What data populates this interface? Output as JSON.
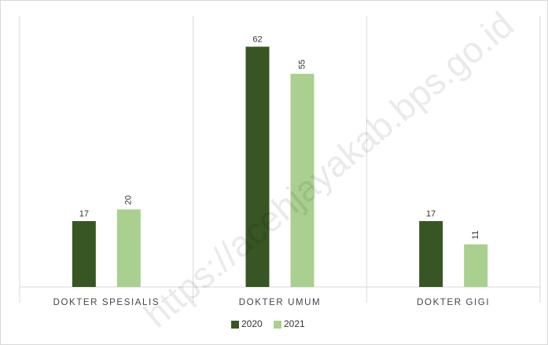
{
  "chart_data": {
    "type": "bar",
    "title": "",
    "xlabel": "",
    "ylabel": "",
    "categories": [
      "DOKTER SPESIALIS",
      "DOKTER UMUM",
      "DOKTER GIGI"
    ],
    "series": [
      {
        "name": "2020",
        "color": "#375623",
        "values": [
          17,
          62,
          17
        ]
      },
      {
        "name": "2021",
        "color": "#A9D08E",
        "values": [
          20,
          55,
          11
        ]
      }
    ],
    "ylim": [
      0,
      70
    ],
    "grid": false,
    "legend": "bottom-center",
    "value_label_rotation": {
      "2020": 0,
      "2021": -90
    }
  },
  "watermark": "https://acehjayakab.bps.go.id"
}
